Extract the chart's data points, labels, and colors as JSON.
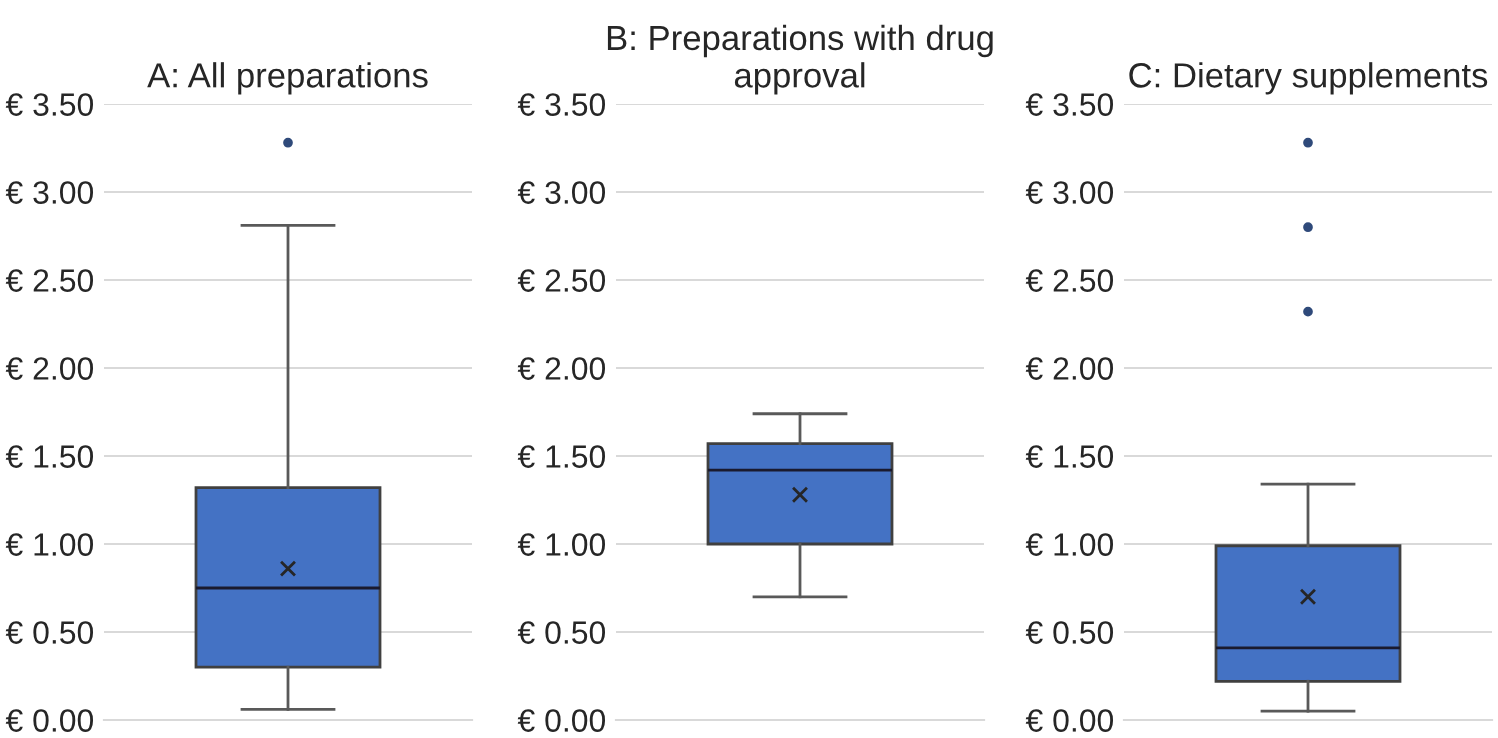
{
  "chart_data": [
    {
      "type": "box",
      "title": "A: All preparations",
      "categories": [
        null
      ],
      "colors": [
        "#4472c4"
      ],
      "boxes": [
        {
          "low": 0.06,
          "q1": 0.3,
          "median": 0.75,
          "q3": 1.32,
          "high": 2.81,
          "mean": 0.86,
          "outliers": [
            3.28
          ]
        }
      ],
      "ylim": [
        0,
        3.5
      ],
      "yticks": [
        {
          "value": 0,
          "label": "€ 0.00"
        },
        {
          "value": 0.5,
          "label": "€ 0.50"
        },
        {
          "value": 1,
          "label": "€ 1.00"
        },
        {
          "value": 1.5,
          "label": "€ 1.50"
        },
        {
          "value": 2,
          "label": "€ 2.00"
        },
        {
          "value": 2.5,
          "label": "€ 2.50"
        },
        {
          "value": 3,
          "label": "€ 3.00"
        },
        {
          "value": 3.5,
          "label": "€ 3.50"
        }
      ],
      "grid": "y"
    },
    {
      "type": "box",
      "title": "B: Preparations with drug approval",
      "categories": [
        null
      ],
      "colors": [
        "#4472c4"
      ],
      "boxes": [
        {
          "low": 0.7,
          "q1": 1.0,
          "median": 1.42,
          "q3": 1.57,
          "high": 1.74,
          "mean": 1.28
        }
      ],
      "ylim": [
        0,
        3.5
      ],
      "yticks": [
        {
          "value": 0,
          "label": "€ 0.00"
        },
        {
          "value": 0.5,
          "label": "€ 0.50"
        },
        {
          "value": 1,
          "label": "€ 1.00"
        },
        {
          "value": 1.5,
          "label": "€ 1.50"
        },
        {
          "value": 2,
          "label": "€ 2.00"
        },
        {
          "value": 2.5,
          "label": "€ 2.50"
        },
        {
          "value": 3,
          "label": "€ 3.00"
        },
        {
          "value": 3.5,
          "label": "€ 3.50"
        }
      ],
      "grid": "y"
    },
    {
      "type": "box",
      "title": "C: Dietary supplements",
      "categories": [
        null
      ],
      "colors": [
        "#4472c4"
      ],
      "boxes": [
        {
          "low": 0.05,
          "q1": 0.22,
          "median": 0.41,
          "q3": 0.99,
          "high": 1.34,
          "mean": 0.7,
          "outliers": [
            2.32,
            2.8,
            3.28
          ]
        }
      ],
      "ylim": [
        0,
        3.5
      ],
      "yticks": [
        {
          "value": 0,
          "label": "€ 0.00"
        },
        {
          "value": 0.5,
          "label": "€ 0.50"
        },
        {
          "value": 1,
          "label": "€ 1.00"
        },
        {
          "value": 1.5,
          "label": "€ 1.50"
        },
        {
          "value": 2,
          "label": "€ 2.00"
        },
        {
          "value": 2.5,
          "label": "€ 2.50"
        },
        {
          "value": 3,
          "label": "€ 3.00"
        },
        {
          "value": 3.5,
          "label": "€ 3.50"
        }
      ],
      "grid": "y"
    }
  ]
}
